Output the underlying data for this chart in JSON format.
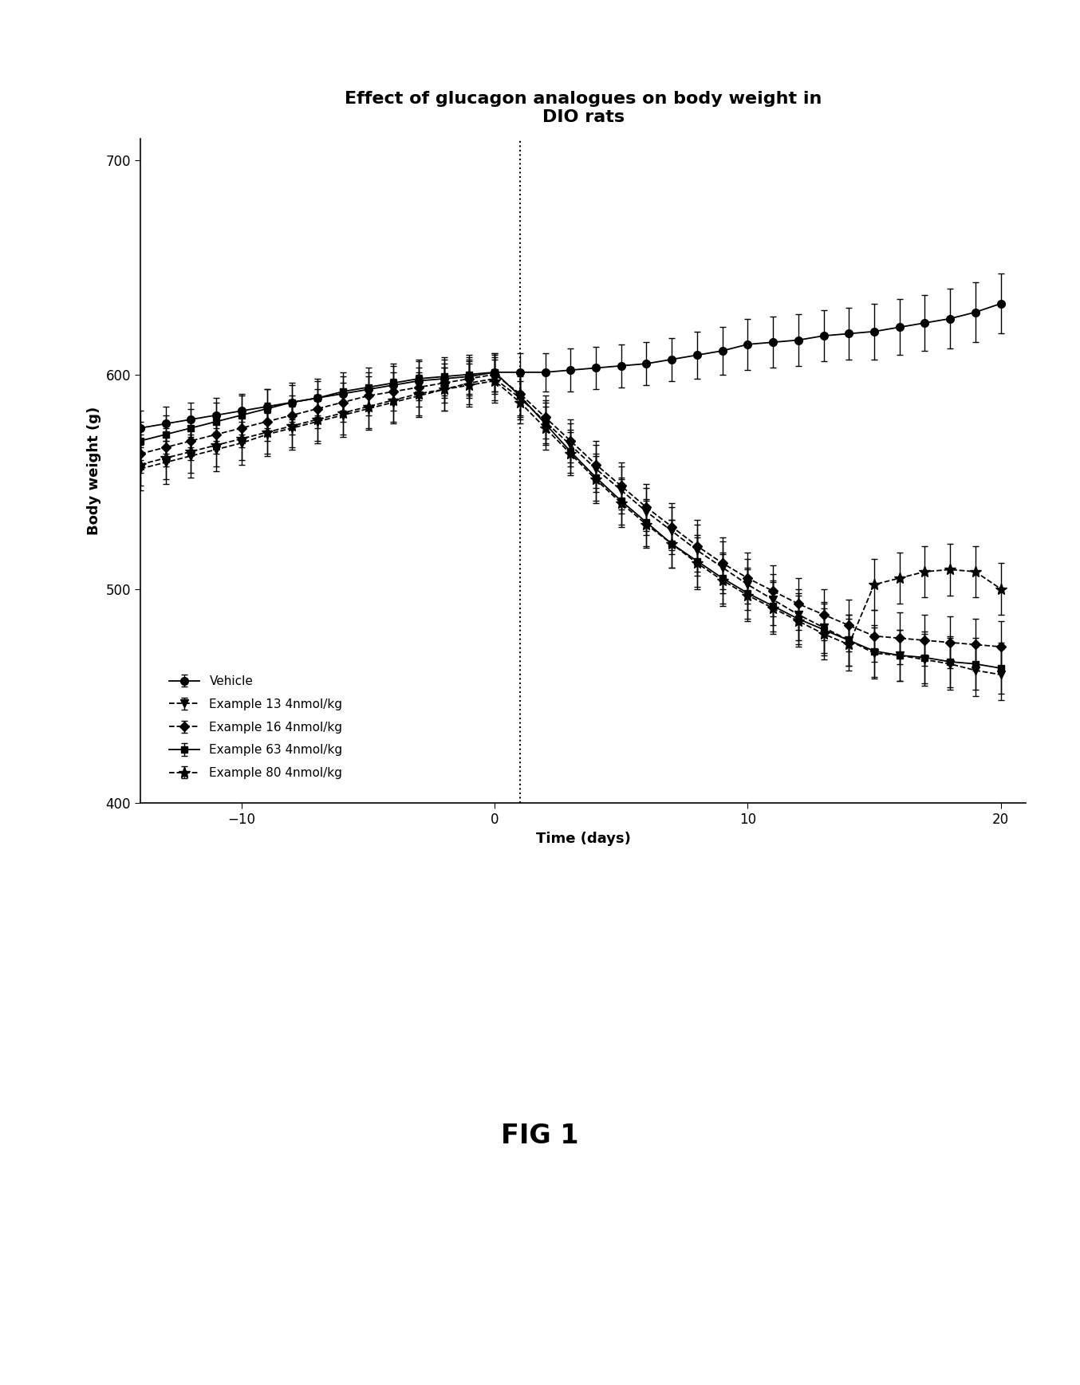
{
  "title": "Effect of glucagon analogues on body weight in\nDIO rats",
  "xlabel": "Time (days)",
  "ylabel": "Body weight (g)",
  "xlim": [
    -14,
    21
  ],
  "ylim": [
    400,
    710
  ],
  "yticks": [
    400,
    500,
    600,
    700
  ],
  "xticks": [
    -10,
    0,
    10,
    20
  ],
  "fig_caption": "FIG 1",
  "vline_x": 1,
  "series": [
    {
      "label": "Vehicle",
      "marker": "o",
      "linestyle": "-",
      "color": "#000000",
      "x": [
        -14,
        -13,
        -12,
        -11,
        -10,
        -9,
        -8,
        -7,
        -6,
        -5,
        -4,
        -3,
        -2,
        -1,
        0,
        1,
        2,
        3,
        4,
        5,
        6,
        7,
        8,
        9,
        10,
        11,
        12,
        13,
        14,
        15,
        16,
        17,
        18,
        19,
        20
      ],
      "y": [
        575,
        577,
        579,
        581,
        583,
        585,
        587,
        589,
        591,
        593,
        595,
        597,
        598,
        599,
        601,
        601,
        601,
        602,
        603,
        604,
        605,
        607,
        609,
        611,
        614,
        615,
        616,
        618,
        619,
        620,
        622,
        624,
        626,
        629,
        633
      ],
      "yerr": [
        8,
        8,
        8,
        8,
        8,
        8,
        8,
        8,
        8,
        8,
        9,
        9,
        9,
        9,
        9,
        9,
        9,
        10,
        10,
        10,
        10,
        10,
        11,
        11,
        12,
        12,
        12,
        12,
        12,
        13,
        13,
        13,
        14,
        14,
        14
      ]
    },
    {
      "label": "Example 13 4nmol/kg",
      "marker": "v",
      "linestyle": "--",
      "color": "#000000",
      "x": [
        -14,
        -13,
        -12,
        -11,
        -10,
        -9,
        -8,
        -7,
        -6,
        -5,
        -4,
        -3,
        -2,
        -1,
        0,
        1,
        2,
        3,
        4,
        5,
        6,
        7,
        8,
        9,
        10,
        11,
        12,
        13,
        14,
        15,
        16,
        17,
        18,
        19,
        20
      ],
      "y": [
        556,
        559,
        562,
        565,
        568,
        572,
        575,
        578,
        581,
        584,
        587,
        590,
        593,
        596,
        598,
        589,
        578,
        567,
        556,
        546,
        536,
        527,
        518,
        510,
        502,
        495,
        488,
        482,
        476,
        470,
        469,
        467,
        465,
        462,
        460
      ],
      "yerr": [
        10,
        10,
        10,
        10,
        10,
        10,
        10,
        10,
        10,
        10,
        10,
        10,
        10,
        10,
        10,
        10,
        10,
        10,
        11,
        11,
        11,
        11,
        12,
        12,
        12,
        12,
        12,
        12,
        12,
        12,
        12,
        12,
        12,
        12,
        12
      ]
    },
    {
      "label": "Example 16 4nmol/kg",
      "marker": "D",
      "linestyle": "--",
      "color": "#000000",
      "x": [
        -14,
        -13,
        -12,
        -11,
        -10,
        -9,
        -8,
        -7,
        -6,
        -5,
        -4,
        -3,
        -2,
        -1,
        0,
        1,
        2,
        3,
        4,
        5,
        6,
        7,
        8,
        9,
        10,
        11,
        12,
        13,
        14,
        15,
        16,
        17,
        18,
        19,
        20
      ],
      "y": [
        563,
        566,
        569,
        572,
        575,
        578,
        581,
        584,
        587,
        590,
        592,
        594,
        596,
        598,
        600,
        591,
        580,
        569,
        558,
        548,
        538,
        529,
        520,
        512,
        505,
        499,
        493,
        488,
        483,
        478,
        477,
        476,
        475,
        474,
        473
      ],
      "yerr": [
        9,
        9,
        9,
        9,
        9,
        9,
        9,
        9,
        9,
        9,
        9,
        9,
        9,
        9,
        9,
        10,
        10,
        10,
        11,
        11,
        11,
        11,
        12,
        12,
        12,
        12,
        12,
        12,
        12,
        12,
        12,
        12,
        12,
        12,
        12
      ]
    },
    {
      "label": "Example 63 4nmol/kg",
      "marker": "s",
      "linestyle": "-",
      "color": "#000000",
      "x": [
        -14,
        -13,
        -12,
        -11,
        -10,
        -9,
        -8,
        -7,
        -6,
        -5,
        -4,
        -3,
        -2,
        -1,
        0,
        1,
        2,
        3,
        4,
        5,
        6,
        7,
        8,
        9,
        10,
        11,
        12,
        13,
        14,
        15,
        16,
        17,
        18,
        19,
        20
      ],
      "y": [
        569,
        572,
        575,
        578,
        581,
        584,
        587,
        589,
        592,
        594,
        596,
        598,
        599,
        600,
        601,
        590,
        577,
        564,
        552,
        541,
        531,
        521,
        513,
        505,
        498,
        492,
        486,
        481,
        476,
        471,
        469,
        468,
        466,
        465,
        463
      ],
      "yerr": [
        9,
        9,
        9,
        9,
        9,
        9,
        9,
        9,
        9,
        9,
        9,
        9,
        9,
        9,
        9,
        10,
        10,
        10,
        11,
        11,
        11,
        11,
        12,
        12,
        12,
        12,
        12,
        12,
        12,
        12,
        12,
        12,
        12,
        12,
        12
      ]
    },
    {
      "label": "Example 80 4nmol/kg",
      "marker": "*",
      "linestyle": "--",
      "color": "#000000",
      "x": [
        -14,
        -13,
        -12,
        -11,
        -10,
        -9,
        -8,
        -7,
        -6,
        -5,
        -4,
        -3,
        -2,
        -1,
        0,
        1,
        2,
        3,
        4,
        5,
        6,
        7,
        8,
        9,
        10,
        11,
        12,
        13,
        14,
        15,
        16,
        17,
        18,
        19,
        20
      ],
      "y": [
        558,
        561,
        564,
        567,
        570,
        573,
        576,
        579,
        582,
        585,
        588,
        591,
        593,
        595,
        597,
        587,
        575,
        563,
        551,
        540,
        530,
        521,
        512,
        504,
        497,
        491,
        485,
        479,
        474,
        502,
        505,
        508,
        509,
        508,
        500
      ],
      "yerr": [
        10,
        10,
        10,
        10,
        10,
        10,
        10,
        10,
        10,
        10,
        10,
        10,
        10,
        10,
        10,
        10,
        10,
        10,
        11,
        11,
        11,
        11,
        12,
        12,
        12,
        12,
        12,
        12,
        12,
        12,
        12,
        12,
        12,
        12,
        12
      ]
    }
  ]
}
